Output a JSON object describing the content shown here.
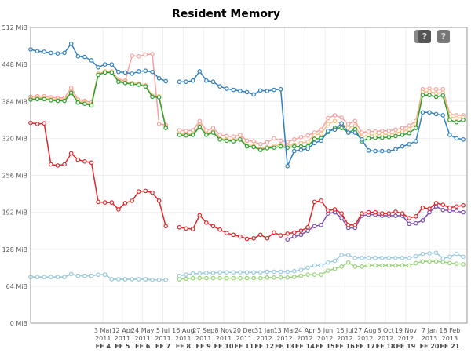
{
  "chart_data": {
    "type": "line",
    "title": "Resident Memory",
    "xlabel": "",
    "ylabel": "",
    "y_unit_suffix": " MiB",
    "ylim": [
      0,
      512
    ],
    "yticks": [
      0,
      64,
      128,
      192,
      256,
      320,
      384,
      448,
      512
    ],
    "grid": true,
    "x_start_date": "2010-10-04",
    "x_step_days": 14,
    "x_range_dates": [
      "2010-10-04",
      "2013-03-26"
    ],
    "xticks": [
      {
        "date": "2011-03-03",
        "l1": "3 Mar",
        "l2": "2011",
        "l3": "FF 4"
      },
      {
        "date": "2011-04-12",
        "l1": "12 Apr",
        "l2": "2011",
        "l3": "FF 5"
      },
      {
        "date": "2011-05-24",
        "l1": "24 May",
        "l2": "2011",
        "l3": "FF 6"
      },
      {
        "date": "2011-07-05",
        "l1": "5 Jul",
        "l2": "2011",
        "l3": "FF 7"
      },
      {
        "date": "2011-08-16",
        "l1": "16 Aug",
        "l2": "2011",
        "l3": "FF 8"
      },
      {
        "date": "2011-09-27",
        "l1": "27 Sep",
        "l2": "2011",
        "l3": "FF 9"
      },
      {
        "date": "2011-11-08",
        "l1": "8 Nov",
        "l2": "2011",
        "l3": "FF 10"
      },
      {
        "date": "2011-12-20",
        "l1": "20 Dec",
        "l2": "2011",
        "l3": "FF 11"
      },
      {
        "date": "2012-01-31",
        "l1": "31 Jan",
        "l2": "2012",
        "l3": "FF 12"
      },
      {
        "date": "2012-03-13",
        "l1": "13 Mar",
        "l2": "2012",
        "l3": "FF 13"
      },
      {
        "date": "2012-04-24",
        "l1": "24 Apr",
        "l2": "2012",
        "l3": "FF 14"
      },
      {
        "date": "2012-06-05",
        "l1": "5 Jun",
        "l2": "2012",
        "l3": "FF 15"
      },
      {
        "date": "2012-07-16",
        "l1": "16 Jul",
        "l2": "2012",
        "l3": "FF 16"
      },
      {
        "date": "2012-08-27",
        "l1": "27 Aug",
        "l2": "2012",
        "l3": "FF 17"
      },
      {
        "date": "2012-10-08",
        "l1": "8 Oct",
        "l2": "2012",
        "l3": "FF 18"
      },
      {
        "date": "2012-11-19",
        "l1": "19 Nov",
        "l2": "2012",
        "l3": "FF 19"
      },
      {
        "date": "2013-01-07",
        "l1": "7 Jan",
        "l2": "2013",
        "l3": "FF 20"
      },
      {
        "date": "2013-02-18",
        "l1": "18 Feb",
        "l2": "2013",
        "l3": "FF 21"
      }
    ],
    "series": [
      {
        "name": "light-green",
        "color": "#98d27a",
        "values": [
          80,
          80,
          80,
          80,
          80,
          80,
          85,
          82,
          82,
          82,
          84,
          84,
          76,
          76,
          76,
          76,
          76,
          76,
          75,
          75,
          75,
          null,
          76,
          77,
          78,
          78,
          78,
          78,
          78,
          78,
          78,
          78,
          78,
          78,
          78,
          79,
          79,
          79,
          79,
          80,
          82,
          84,
          84,
          84,
          91,
          94,
          98,
          105,
          98,
          98,
          100,
          100,
          100,
          100,
          100,
          100,
          100,
          104,
          107,
          107,
          107,
          106,
          104,
          103,
          102
        ]
      },
      {
        "name": "light-blue",
        "color": "#9ecae1",
        "values": [
          80,
          80,
          80,
          80,
          80,
          80,
          85,
          82,
          82,
          82,
          84,
          84,
          76,
          76,
          76,
          76,
          76,
          76,
          75,
          75,
          75,
          null,
          82,
          84,
          86,
          86,
          87,
          87,
          88,
          88,
          88,
          88,
          88,
          88,
          88,
          89,
          89,
          89,
          89,
          90,
          92,
          96,
          100,
          100,
          105,
          108,
          118,
          118,
          113,
          113,
          113,
          113,
          113,
          113,
          113,
          113,
          113,
          116,
          120,
          121,
          122,
          112,
          115,
          120,
          115
        ]
      },
      {
        "name": "purple",
        "color": "#7b4fae",
        "values": [
          null,
          null,
          null,
          null,
          null,
          null,
          null,
          null,
          null,
          null,
          null,
          null,
          null,
          null,
          null,
          null,
          null,
          null,
          null,
          null,
          null,
          null,
          null,
          null,
          null,
          null,
          null,
          null,
          null,
          null,
          null,
          null,
          null,
          null,
          null,
          null,
          null,
          null,
          145,
          150,
          153,
          160,
          168,
          170,
          190,
          192,
          182,
          165,
          165,
          186,
          188,
          188,
          186,
          186,
          186,
          186,
          172,
          173,
          178,
          192,
          202,
          196,
          195,
          194,
          192
        ]
      },
      {
        "name": "red",
        "color": "#e0262a",
        "values": [
          347,
          345,
          346,
          275,
          273,
          275,
          294,
          283,
          280,
          278,
          210,
          209,
          209,
          197,
          208,
          212,
          228,
          229,
          226,
          212,
          168,
          null,
          166,
          164,
          163,
          187,
          174,
          168,
          162,
          156,
          153,
          150,
          146,
          147,
          153,
          147,
          157,
          152,
          155,
          157,
          160,
          166,
          210,
          212,
          195,
          197,
          190,
          170,
          170,
          190,
          192,
          192,
          190,
          190,
          193,
          190,
          182,
          185,
          200,
          198,
          208,
          205,
          200,
          202,
          204
        ]
      },
      {
        "name": "pink",
        "color": "#f4a3a0",
        "values": [
          392,
          393,
          393,
          391,
          390,
          390,
          408,
          387,
          385,
          382,
          432,
          436,
          436,
          422,
          420,
          463,
          462,
          465,
          466,
          345,
          343,
          null,
          334,
          333,
          334,
          350,
          334,
          338,
          326,
          324,
          323,
          326,
          316,
          315,
          310,
          313,
          320,
          316,
          314,
          318,
          322,
          325,
          330,
          335,
          355,
          360,
          356,
          345,
          350,
          330,
          332,
          332,
          333,
          333,
          335,
          338,
          342,
          350,
          405,
          406,
          405,
          405,
          362,
          360,
          360
        ]
      },
      {
        "name": "orange",
        "color": "#f9be84",
        "values": [
          389,
          390,
          390,
          388,
          387,
          387,
          401,
          384,
          382,
          379,
          432,
          436,
          436,
          420,
          418,
          416,
          415,
          412,
          394,
          393,
          340,
          null,
          328,
          327,
          328,
          342,
          328,
          332,
          320,
          318,
          317,
          320,
          308,
          307,
          302,
          305,
          307,
          309,
          307,
          309,
          312,
          314,
          326,
          328,
          345,
          350,
          346,
          338,
          342,
          322,
          326,
          326,
          327,
          327,
          329,
          332,
          336,
          345,
          400,
          401,
          398,
          399,
          357,
          355,
          356
        ]
      },
      {
        "name": "green",
        "color": "#2ca02c",
        "values": [
          387,
          388,
          388,
          386,
          385,
          385,
          399,
          382,
          380,
          377,
          430,
          434,
          434,
          418,
          416,
          414,
          413,
          410,
          392,
          391,
          338,
          null,
          326,
          325,
          326,
          340,
          326,
          330,
          318,
          316,
          315,
          318,
          306,
          305,
          300,
          303,
          304,
          306,
          304,
          306,
          306,
          306,
          319,
          320,
          331,
          338,
          338,
          330,
          336,
          315,
          320,
          321,
          321,
          322,
          324,
          326,
          329,
          338,
          395,
          395,
          392,
          394,
          352,
          348,
          352
        ]
      },
      {
        "name": "blue",
        "color": "#2f7fc1",
        "values": [
          474,
          471,
          470,
          468,
          467,
          468,
          484,
          462,
          461,
          455,
          443,
          448,
          448,
          435,
          434,
          432,
          436,
          437,
          435,
          424,
          419,
          null,
          418,
          418,
          420,
          436,
          420,
          418,
          410,
          406,
          404,
          402,
          400,
          396,
          403,
          402,
          404,
          405,
          272,
          298,
          300,
          302,
          312,
          316,
          333,
          335,
          346,
          330,
          330,
          318,
          299,
          298,
          298,
          298,
          301,
          306,
          310,
          315,
          365,
          365,
          362,
          360,
          326,
          320,
          318
        ]
      }
    ]
  },
  "annotations": {
    "help_label": "?"
  }
}
